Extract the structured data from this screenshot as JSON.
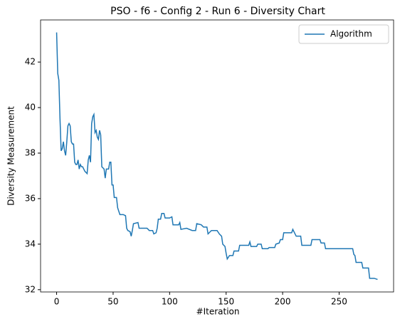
{
  "chart_data": {
    "type": "line",
    "title": "PSO - f6 - Config 2 - Run 6 - Diversity Chart",
    "xlabel": "#Iteration",
    "ylabel": "Diversity Measurement",
    "x": [
      0,
      1,
      2,
      3,
      4,
      5,
      6,
      7,
      8,
      9,
      10,
      11,
      12,
      13,
      14,
      15,
      16,
      17,
      18,
      19,
      20,
      21,
      22,
      23,
      25,
      27,
      28,
      29,
      30,
      31,
      32,
      33,
      34,
      35,
      36,
      37,
      38,
      39,
      40,
      42,
      43,
      44,
      46,
      47,
      48,
      49,
      50,
      51,
      53,
      54,
      56,
      59,
      61,
      62,
      63,
      65,
      66,
      67,
      68,
      72,
      73,
      76,
      80,
      82,
      85,
      86,
      88,
      89,
      90,
      92,
      93,
      95,
      96,
      100,
      102,
      103,
      108,
      109,
      110,
      115,
      120,
      123,
      124,
      128,
      130,
      133,
      134,
      137,
      142,
      144,
      146,
      147,
      149,
      150,
      151,
      153,
      156,
      157,
      161,
      162,
      170,
      171,
      172,
      177,
      178,
      181,
      182,
      187,
      188,
      193,
      194,
      197,
      198,
      200,
      201,
      208,
      209,
      210,
      212,
      216,
      217,
      225,
      226,
      233,
      234,
      237,
      238,
      262,
      263,
      264,
      265,
      270,
      271,
      276,
      277,
      281,
      284
    ],
    "series": [
      {
        "name": "Algorithm",
        "color": "#1f77b4",
        "values": [
          43.3,
          41.5,
          41.2,
          39.5,
          38.1,
          38.2,
          38.5,
          38.1,
          37.9,
          38.5,
          39.2,
          39.3,
          39.2,
          38.5,
          38.4,
          38.4,
          37.6,
          37.5,
          37.5,
          37.7,
          37.3,
          37.5,
          37.4,
          37.4,
          37.2,
          37.1,
          37.7,
          37.9,
          37.6,
          39.3,
          39.6,
          39.7,
          38.9,
          39.0,
          38.7,
          38.6,
          39.0,
          38.8,
          37.4,
          37.3,
          36.9,
          37.3,
          37.3,
          37.6,
          37.6,
          36.6,
          36.6,
          36.05,
          36.05,
          35.6,
          35.3,
          35.3,
          35.25,
          34.7,
          34.6,
          34.55,
          34.35,
          34.6,
          34.9,
          34.95,
          34.7,
          34.7,
          34.7,
          34.6,
          34.6,
          34.45,
          34.5,
          34.7,
          35.1,
          35.1,
          35.35,
          35.35,
          35.15,
          35.15,
          35.2,
          34.85,
          34.85,
          34.95,
          34.65,
          34.7,
          34.6,
          34.6,
          34.9,
          34.85,
          34.75,
          34.75,
          34.45,
          34.6,
          34.6,
          34.45,
          34.35,
          34.0,
          33.9,
          33.6,
          33.35,
          33.5,
          33.5,
          33.7,
          33.7,
          33.95,
          33.95,
          34.1,
          33.9,
          33.9,
          34.0,
          34.0,
          33.8,
          33.8,
          33.85,
          33.85,
          34.0,
          34.05,
          34.2,
          34.2,
          34.5,
          34.5,
          34.65,
          34.55,
          34.35,
          34.35,
          33.95,
          33.95,
          34.2,
          34.2,
          34.05,
          34.05,
          33.8,
          33.8,
          33.55,
          33.5,
          33.2,
          33.2,
          32.95,
          32.95,
          32.5,
          32.5,
          32.45
        ]
      }
    ],
    "xlim": [
      -14.2,
      298.2
    ],
    "ylim": [
      31.9,
      43.85
    ],
    "xticks": [
      0,
      50,
      100,
      150,
      200,
      250
    ],
    "yticks": [
      32,
      34,
      36,
      38,
      40,
      42
    ],
    "legend": "upper right",
    "grid": false
  }
}
